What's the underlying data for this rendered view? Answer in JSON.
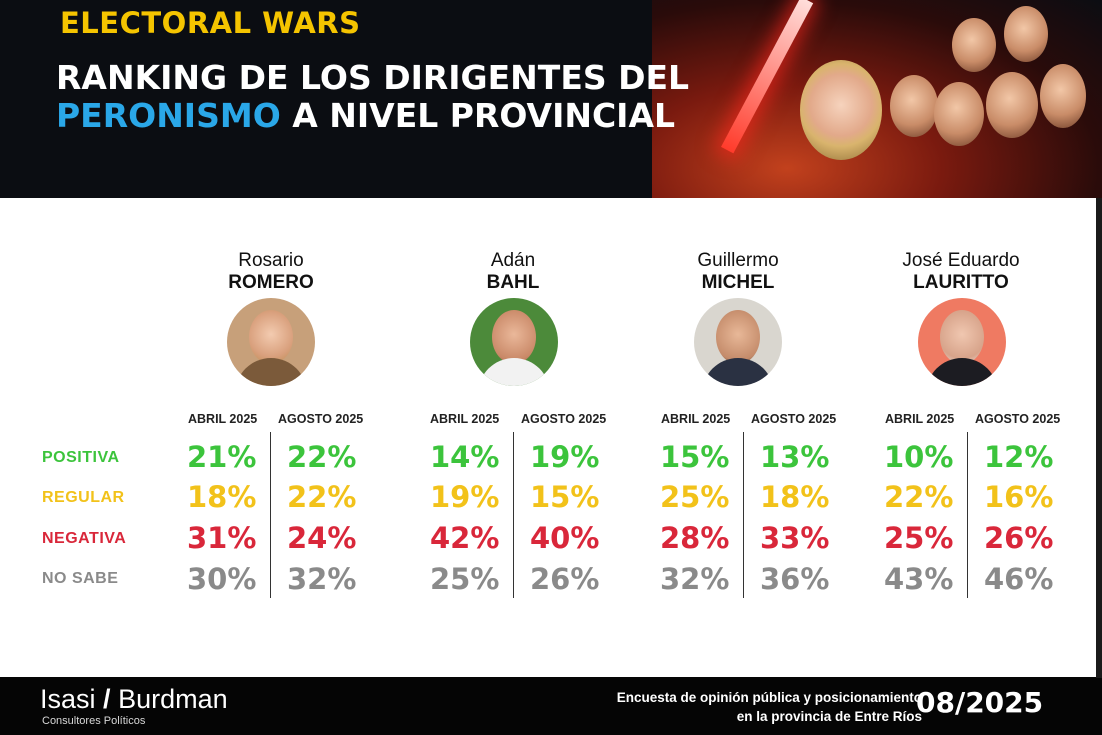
{
  "header": {
    "brand": "ELECTORAL WARS",
    "title_line1": "RANKING DE LOS DIRIGENTES DEL",
    "title_line2_highlight": "PERONISMO",
    "title_line2_rest": " A NIVEL PROVINCIAL"
  },
  "colors": {
    "positiva": "#3cc43c",
    "regular": "#f2c21a",
    "negativa": "#d9273a",
    "no_sabe": "#8a8a8a",
    "highlight": "#2aa7e8",
    "brand": "#f5c400"
  },
  "chart_data": {
    "type": "table",
    "periods": [
      "ABRIL 2025",
      "AGOSTO 2025"
    ],
    "rows": [
      "POSITIVA",
      "REGULAR",
      "NEGATIVA",
      "NO SABE"
    ],
    "candidates": [
      {
        "first": "Rosario",
        "last": "ROMERO",
        "abril": [
          "21%",
          "18%",
          "31%",
          "30%"
        ],
        "agosto": [
          "22%",
          "22%",
          "24%",
          "32%"
        ]
      },
      {
        "first": "Adán",
        "last": "BAHL",
        "abril": [
          "14%",
          "19%",
          "42%",
          "25%"
        ],
        "agosto": [
          "19%",
          "15%",
          "40%",
          "26%"
        ]
      },
      {
        "first": "Guillermo",
        "last": "MICHEL",
        "abril": [
          "15%",
          "25%",
          "28%",
          "32%"
        ],
        "agosto": [
          "13%",
          "18%",
          "33%",
          "36%"
        ]
      },
      {
        "first": "José Eduardo",
        "last": "LAURITTO",
        "abril": [
          "10%",
          "22%",
          "25%",
          "43%"
        ],
        "agosto": [
          "12%",
          "16%",
          "26%",
          "46%"
        ]
      }
    ]
  },
  "footer": {
    "logo_left": "Isasi",
    "logo_slash": "/",
    "logo_right": "Burdman",
    "logo_sub": "Consultores Políticos",
    "survey_line1": "Encuesta de opinión pública y posicionamiento",
    "survey_line2": "en la provincia de Entre Ríos",
    "date": "08/2025"
  }
}
